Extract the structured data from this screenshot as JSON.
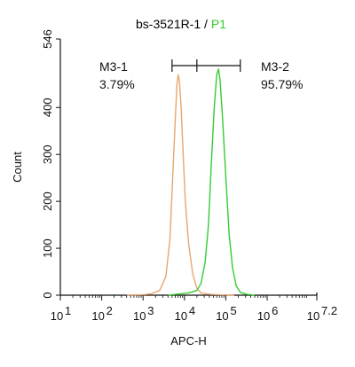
{
  "chart_data": {
    "type": "line",
    "title_prefix": "bs-3521R-1 /",
    "title_gate": "P1",
    "title_gate_color": "#33cc33",
    "xlabel": "APC-H",
    "ylabel": "Count",
    "xscale": "log",
    "xlim": [
      1,
      7.2
    ],
    "ylim": [
      0,
      546
    ],
    "x_tick_labels": [
      "10",
      "10",
      "10",
      "10",
      "10",
      "10",
      "10"
    ],
    "x_tick_exponents": [
      "1",
      "2",
      "3",
      "4",
      "5",
      "6",
      "7.2"
    ],
    "x_tick_values": [
      1,
      2,
      3,
      4,
      5,
      6,
      7.2
    ],
    "y_ticks": [
      0,
      100,
      200,
      300,
      400,
      546
    ],
    "y_tick_labels": [
      "0",
      "100",
      "200",
      "300",
      "400",
      "546"
    ],
    "series": [
      {
        "color": "#e8a66e",
        "points": [
          [
            2.6,
            0
          ],
          [
            3.0,
            1
          ],
          [
            3.2,
            3
          ],
          [
            3.4,
            10
          ],
          [
            3.55,
            40
          ],
          [
            3.65,
            120
          ],
          [
            3.72,
            260
          ],
          [
            3.78,
            380
          ],
          [
            3.82,
            450
          ],
          [
            3.85,
            470
          ],
          [
            3.88,
            455
          ],
          [
            3.92,
            400
          ],
          [
            3.97,
            300
          ],
          [
            4.02,
            200
          ],
          [
            4.1,
            110
          ],
          [
            4.2,
            45
          ],
          [
            4.3,
            15
          ],
          [
            4.4,
            5
          ],
          [
            4.6,
            2
          ],
          [
            4.9,
            0.5
          ],
          [
            5.2,
            0
          ]
        ]
      },
      {
        "color": "#33cc33",
        "points": [
          [
            3.6,
            0
          ],
          [
            3.9,
            3
          ],
          [
            4.1,
            5
          ],
          [
            4.3,
            10
          ],
          [
            4.4,
            25
          ],
          [
            4.5,
            70
          ],
          [
            4.58,
            150
          ],
          [
            4.65,
            280
          ],
          [
            4.72,
            400
          ],
          [
            4.78,
            470
          ],
          [
            4.82,
            482
          ],
          [
            4.86,
            460
          ],
          [
            4.92,
            380
          ],
          [
            5.0,
            250
          ],
          [
            5.08,
            130
          ],
          [
            5.16,
            60
          ],
          [
            5.25,
            20
          ],
          [
            5.35,
            6
          ],
          [
            5.5,
            2
          ],
          [
            5.7,
            0
          ]
        ]
      }
    ],
    "gates": [
      {
        "label": "M3-1",
        "percent": "3.79%",
        "x_start": 3.7,
        "x_end": 4.3
      },
      {
        "label": "M3-2",
        "percent": "95.79%",
        "x_start": 4.3,
        "x_end": 5.35
      }
    ]
  }
}
